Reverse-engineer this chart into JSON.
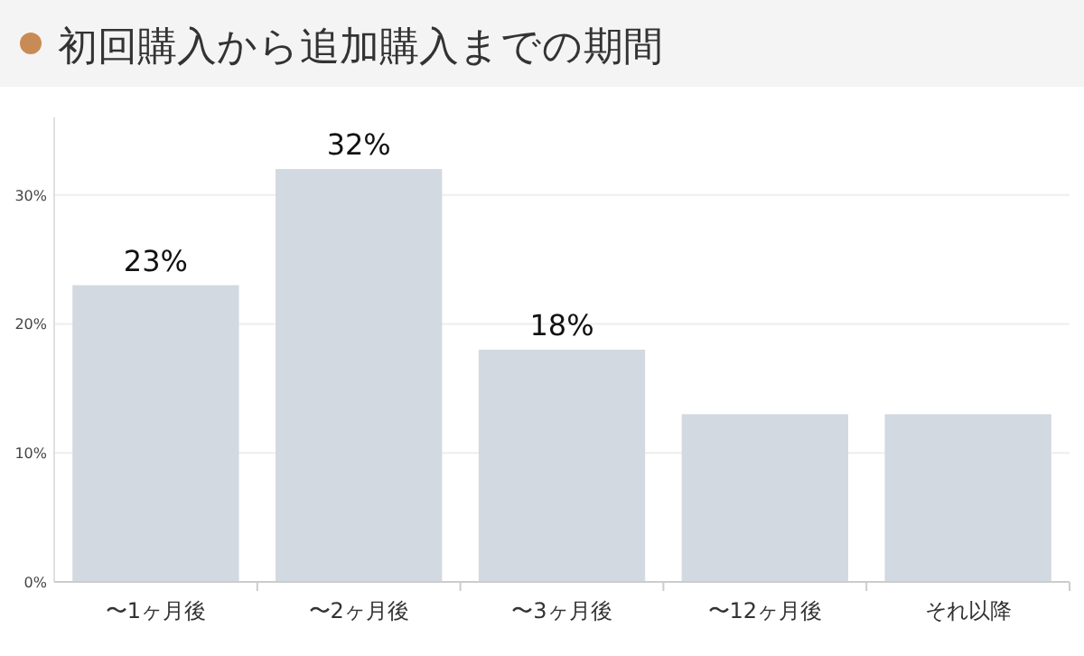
{
  "chart_data": {
    "type": "bar",
    "title": "初回購入から追加購入までの期間",
    "categories": [
      "〜1ヶ月後",
      "〜2ヶ月後",
      "〜3ヶ月後",
      "〜12ヶ月後",
      "それ以降"
    ],
    "values": [
      23,
      32,
      18,
      13,
      13
    ],
    "value_labels": [
      "23%",
      "32%",
      "18%",
      null,
      null
    ],
    "color": "#d2d9e0",
    "ylim": [
      0,
      36
    ],
    "yticks": [
      {
        "value": 0,
        "label": "0%"
      },
      {
        "value": 10,
        "label": "10%"
      },
      {
        "value": 20,
        "label": "20%"
      },
      {
        "value": 30,
        "label": "30%"
      }
    ],
    "grid": "y"
  }
}
